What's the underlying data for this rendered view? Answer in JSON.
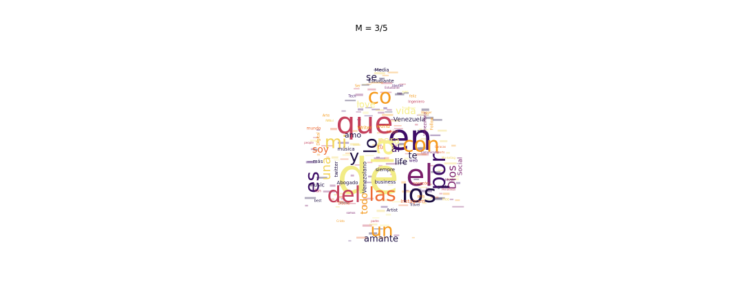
{
  "title": "M = 3/5",
  "palette": [
    "#1a0c40",
    "#3d0c66",
    "#7a1f6b",
    "#c4405c",
    "#ee6a32",
    "#f59a1c",
    "#f2d45b",
    "#f7ef8c"
  ],
  "words": [
    {
      "t": "de",
      "c": "#f2ec86"
    },
    {
      "t": "en",
      "c": "#3d0c66"
    },
    {
      "t": "que",
      "c": "#c4405c"
    },
    {
      "t": "el",
      "c": "#7a1f6b"
    },
    {
      "t": "los",
      "c": "#1a0c40"
    },
    {
      "t": "co",
      "c": "#f59a1c"
    },
    {
      "t": "la",
      "c": "#f7ef8c"
    },
    {
      "t": "del",
      "c": "#c4405c"
    },
    {
      "t": "las",
      "c": "#ee6a32"
    },
    {
      "t": "con",
      "c": "#f59a1c"
    },
    {
      "t": "por",
      "c": "#3d0c66"
    },
    {
      "t": "es",
      "c": "#3d0c66"
    },
    {
      "t": "y",
      "c": "#1a0c40"
    },
    {
      "t": "mi",
      "c": "#f2d45b"
    },
    {
      "t": "un",
      "c": "#f59a1c"
    },
    {
      "t": "para",
      "c": "#f7ef8c"
    },
    {
      "t": "una",
      "c": "#f2d45b"
    },
    {
      "t": "lo",
      "c": "#1a0c40"
    },
    {
      "t": "Dios",
      "c": "#7a1f6b"
    },
    {
      "t": "vida",
      "c": "#f7ef8c"
    },
    {
      "t": "love",
      "c": "#f7ef8c"
    },
    {
      "t": "se",
      "c": "#1a0c40"
    },
    {
      "t": "soy",
      "c": "#ee6a32"
    },
    {
      "t": "todo",
      "c": "#f59a1c"
    },
    {
      "t": "al",
      "c": "#3d0c66"
    },
    {
      "t": "te",
      "c": "#1a0c40"
    },
    {
      "t": "life",
      "c": "#1a0c40"
    },
    {
      "t": "amante",
      "c": "#1a0c40"
    },
    {
      "t": "amo",
      "c": "#1a0c40"
    },
    {
      "t": "Venezuela",
      "c": "#1a0c40"
    },
    {
      "t": "Estudiante",
      "c": "#1a0c40"
    },
    {
      "t": "Media",
      "c": "#1a0c40"
    },
    {
      "t": "Social",
      "c": "#7a1f6b"
    },
    {
      "t": "tu",
      "c": "#ee6a32"
    },
    {
      "t": "Venezolano",
      "c": "#1a0c40"
    },
    {
      "t": "música",
      "c": "#1a0c40"
    },
    {
      "t": "siempre",
      "c": "#1a0c40"
    },
    {
      "t": "business",
      "c": "#1a0c40"
    },
    {
      "t": "Abogado",
      "c": "#1a0c40"
    },
    {
      "t": "music",
      "c": "#1a0c40"
    },
    {
      "t": "más",
      "c": "#1a0c40"
    },
    {
      "t": "twitter",
      "c": "#1a0c40"
    },
    {
      "t": "Instagram",
      "c": "#ee6a32"
    },
    {
      "t": "mundo",
      "c": "#ee6a32"
    },
    {
      "t": "Writer",
      "c": "#f59a1c"
    },
    {
      "t": "world",
      "c": "#f59a1c"
    },
    {
      "t": "fan",
      "c": "#c4405c"
    },
    {
      "t": "Digital",
      "c": "#f59a1c"
    },
    {
      "t": "Artist",
      "c": "#1a0c40"
    },
    {
      "t": "gusta",
      "c": "#1a0c40"
    },
    {
      "t": "corazón",
      "c": "#ee6a32"
    },
    {
      "t": "Venezolana",
      "c": "#7a1f6b"
    },
    {
      "t": "web",
      "c": "#3d0c66"
    },
    {
      "t": "su",
      "c": "#1a0c40"
    },
    {
      "t": "mis",
      "c": "#f59a1c"
    },
    {
      "t": "Follow",
      "c": "#f59a1c"
    },
    {
      "t": "mejor",
      "c": "#ee6a32"
    },
    {
      "t": "ser",
      "c": "#f7ef8c"
    },
    {
      "t": "best",
      "c": "#1a0c40"
    },
    {
      "t": "Travel",
      "c": "#1a0c40"
    },
    {
      "t": "Music",
      "c": "#7a1f6b"
    },
    {
      "t": "free",
      "c": "#f2d45b"
    },
    {
      "t": "Periodista",
      "c": "#c4405c"
    },
    {
      "t": "Sports",
      "c": "#ee6a32"
    },
    {
      "t": "Arte",
      "c": "#f59a1c"
    },
    {
      "t": "Ingeniero",
      "c": "#c4405c"
    },
    {
      "t": "feliz",
      "c": "#f59a1c"
    },
    {
      "t": "Marketing",
      "c": "#f2d45b"
    },
    {
      "t": "Comunicador",
      "c": "#7a1f6b"
    },
    {
      "t": "Diseño",
      "c": "#ee6a32"
    },
    {
      "t": "Estudiante",
      "c": "#7a1f6b"
    },
    {
      "t": "Tech",
      "c": "#3d0c66"
    },
    {
      "t": "Blogger",
      "c": "#f59a1c"
    },
    {
      "t": "people",
      "c": "#c4405c"
    },
    {
      "t": "libertad",
      "c": "#3d0c66"
    },
    {
      "t": "futbol",
      "c": "#f2d45b"
    },
    {
      "t": "padre",
      "c": "#c4405c"
    },
    {
      "t": "Ser",
      "c": "#f59a1c"
    },
    {
      "t": "somos",
      "c": "#7a1f6b"
    },
    {
      "t": "Caracas",
      "c": "#ee6a32"
    },
    {
      "t": "Cristo",
      "c": "#f59a1c"
    }
  ]
}
